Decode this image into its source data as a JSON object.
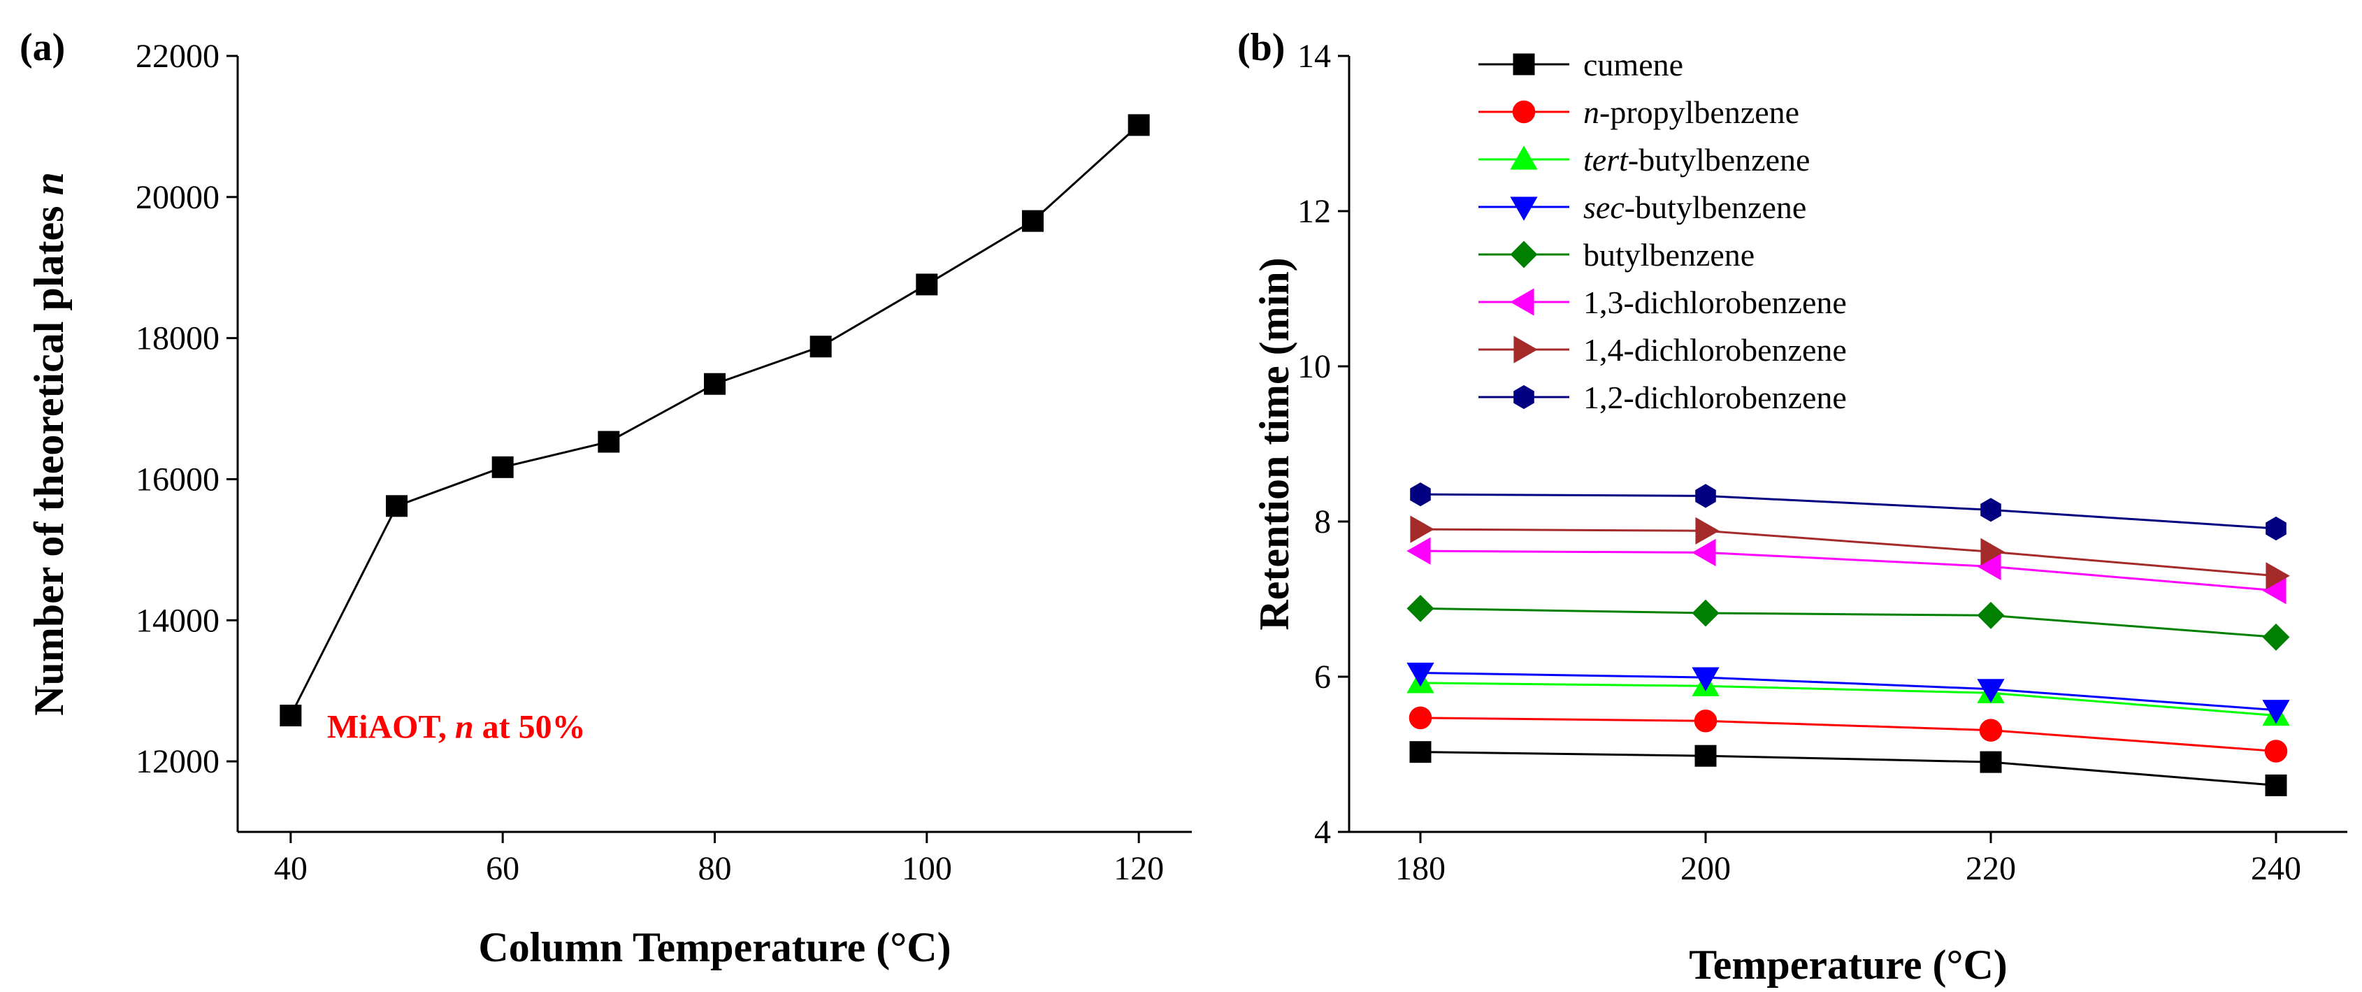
{
  "chart_data": [
    {
      "type": "line",
      "panel_label": "(a)",
      "xlabel": "Column Temperature (°C)",
      "ylabel": "Number of theoretical plates n",
      "xlim": [
        35,
        125
      ],
      "ylim": [
        11000,
        22000
      ],
      "xticks": [
        40,
        60,
        80,
        100,
        120
      ],
      "yticks": [
        12000,
        14000,
        16000,
        18000,
        20000,
        22000
      ],
      "grid": false,
      "annotation": {
        "prefix": "MiAOT, ",
        "italic": "n",
        "suffix": " at 50%",
        "color": "#ff0000",
        "x": 40,
        "y": 12650
      },
      "series": [
        {
          "color": "#000000",
          "marker": "square",
          "x": [
            40,
            50,
            60,
            70,
            80,
            90,
            100,
            110,
            120
          ],
          "y": [
            12650,
            15620,
            16170,
            16530,
            17350,
            17880,
            18760,
            19660,
            21020
          ]
        }
      ]
    },
    {
      "type": "line",
      "panel_label": "(b)",
      "xlabel": "Temperature (°C)",
      "ylabel": "Retention time (min)",
      "xlim": [
        175,
        245
      ],
      "ylim": [
        4,
        14
      ],
      "xticks": [
        180,
        200,
        220,
        240
      ],
      "yticks": [
        4,
        6,
        8,
        10,
        12,
        14
      ],
      "grid": false,
      "legend_position": "top-left",
      "series": [
        {
          "name": "cumene",
          "italic_prefix": "",
          "label_rest": "cumene",
          "color": "#000000",
          "marker": "square",
          "x": [
            180,
            200,
            220,
            240
          ],
          "y": [
            5.03,
            4.98,
            4.9,
            4.6
          ]
        },
        {
          "name": "n-propylbenzene",
          "italic_prefix": "n",
          "label_rest": "-propylbenzene",
          "color": "#ff0000",
          "marker": "circle",
          "x": [
            180,
            200,
            220,
            240
          ],
          "y": [
            5.47,
            5.43,
            5.31,
            5.04
          ]
        },
        {
          "name": "tert-butylbenzene",
          "italic_prefix": "tert",
          "label_rest": "-butylbenzene",
          "color": "#00ff00",
          "marker": "triangle-up",
          "x": [
            180,
            200,
            220,
            240
          ],
          "y": [
            5.92,
            5.88,
            5.79,
            5.5
          ]
        },
        {
          "name": "sec-butylbenzene",
          "italic_prefix": "sec",
          "label_rest": "-butylbenzene",
          "color": "#0000ff",
          "marker": "triangle-down",
          "x": [
            180,
            200,
            220,
            240
          ],
          "y": [
            6.05,
            5.99,
            5.84,
            5.57
          ]
        },
        {
          "name": "butylbenzene",
          "italic_prefix": "",
          "label_rest": "butylbenzene",
          "color": "#008000",
          "marker": "diamond",
          "x": [
            180,
            200,
            220,
            240
          ],
          "y": [
            6.88,
            6.82,
            6.79,
            6.51
          ]
        },
        {
          "name": "1,3-dichlorobenzene",
          "italic_prefix": "",
          "label_rest": "1,3-dichlorobenzene",
          "color": "#ff00ff",
          "marker": "triangle-left",
          "x": [
            180,
            200,
            220,
            240
          ],
          "y": [
            7.62,
            7.6,
            7.42,
            7.11
          ]
        },
        {
          "name": "1,4-dichlorobenzene",
          "italic_prefix": "",
          "label_rest": "1,4-dichlorobenzene",
          "color": "#a52a2a",
          "marker": "triangle-right",
          "x": [
            180,
            200,
            220,
            240
          ],
          "y": [
            7.9,
            7.88,
            7.61,
            7.3
          ]
        },
        {
          "name": "1,2-dichlorobenzene",
          "italic_prefix": "",
          "label_rest": "1,2-dichlorobenzene",
          "color": "#000080",
          "marker": "hexagon",
          "x": [
            180,
            200,
            220,
            240
          ],
          "y": [
            8.35,
            8.33,
            8.15,
            7.91
          ]
        }
      ]
    }
  ]
}
